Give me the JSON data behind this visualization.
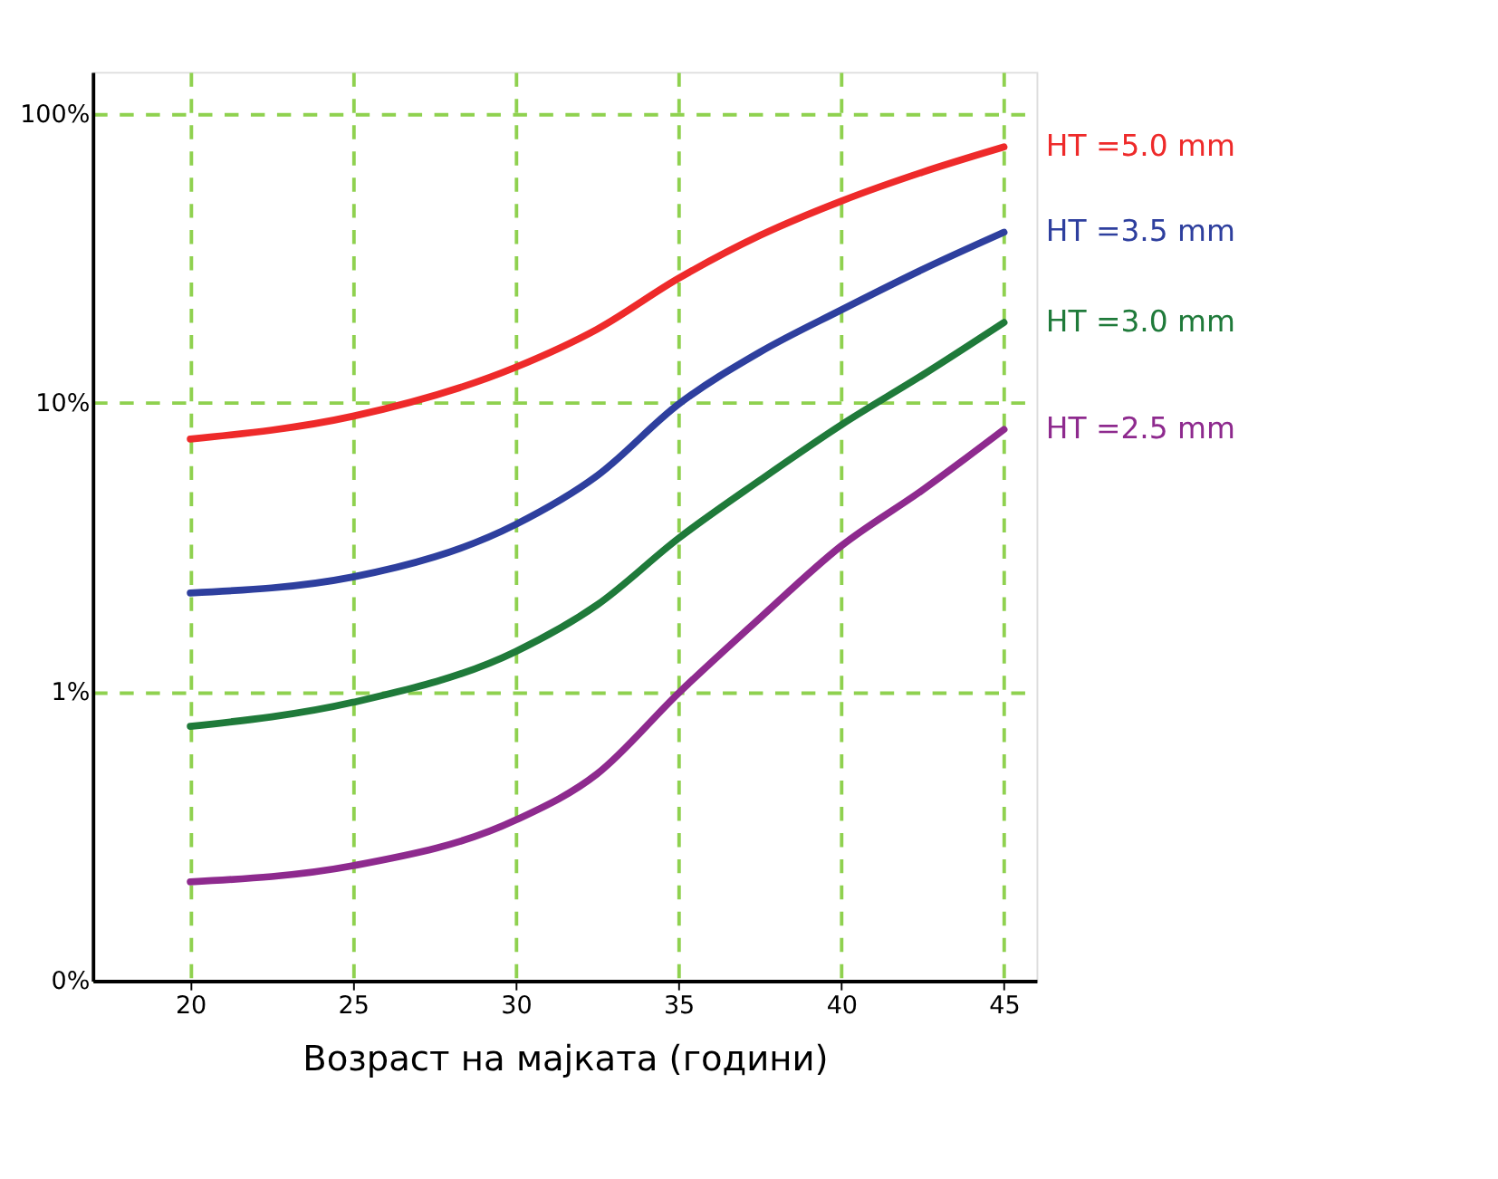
{
  "chart_data": {
    "type": "line",
    "xlabel": "Возраст на мајката (години)",
    "x": [
      20,
      25,
      30,
      32.5,
      35,
      37.5,
      40,
      42.5,
      45
    ],
    "series": [
      {
        "name": "HT =5.0 mm",
        "color": "#ee2a2a",
        "values": [
          7.5,
          9.0,
          13.3,
          18,
          27,
          38,
          50,
          63,
          77
        ]
      },
      {
        "name": "HT =3.5 mm",
        "color": "#2e3f9e",
        "values": [
          2.2,
          2.5,
          3.8,
          5.6,
          9.9,
          15,
          21,
          29,
          39
        ]
      },
      {
        "name": "HT =3.0 mm",
        "color": "#1f7a3a",
        "values": [
          0.76,
          0.92,
          1.38,
          2.0,
          3.4,
          5.4,
          8.4,
          12.5,
          19
        ]
      },
      {
        "name": "HT =2.5 mm",
        "color": "#8e2a8e",
        "values": [
          0.22,
          0.25,
          0.36,
          0.52,
          0.99,
          1.8,
          3.2,
          5.0,
          8.1
        ]
      }
    ],
    "xlim": [
      17,
      46
    ],
    "xticks": [
      20,
      25,
      30,
      35,
      40,
      45
    ],
    "ylim": [
      0.1,
      140
    ],
    "yticks": [
      {
        "value": 0.1,
        "label": "0%"
      },
      {
        "value": 1,
        "label": "1%"
      },
      {
        "value": 10,
        "label": "10%"
      },
      {
        "value": 100,
        "label": "100%"
      }
    ],
    "log": "y",
    "grid": true,
    "legend": false,
    "line_style": "solid",
    "marker": "none"
  }
}
